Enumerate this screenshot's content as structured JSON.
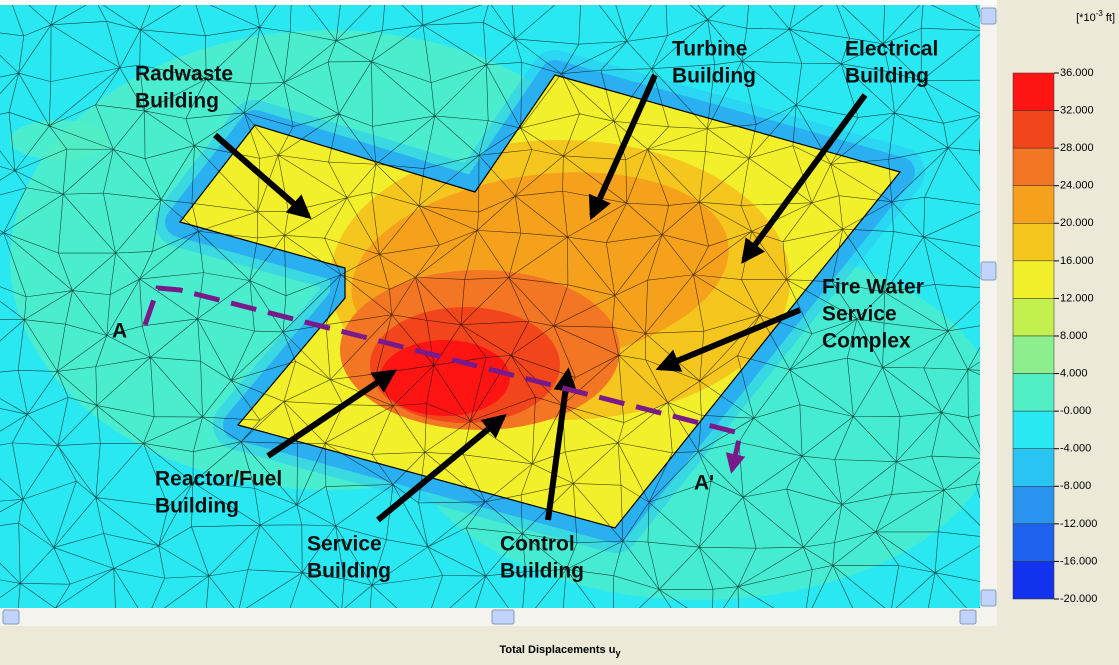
{
  "viewport": {
    "annotations": [
      {
        "lines": [
          "Radwaste",
          "Building"
        ]
      },
      {
        "lines": [
          "Turbine",
          "Building"
        ]
      },
      {
        "lines": [
          "Electrical",
          "Building"
        ]
      },
      {
        "lines": [
          "Fire Water",
          "Service",
          "Complex"
        ]
      },
      {
        "lines": [
          "Reactor/Fuel",
          "Building"
        ]
      },
      {
        "lines": [
          "Service",
          "Building"
        ]
      },
      {
        "lines": [
          "Control",
          "Building"
        ]
      }
    ],
    "section_labels": [
      "A",
      "A'"
    ]
  },
  "legend": {
    "unit_base": "[*10",
    "unit_exponent": "-3",
    "unit_suffix": "ft]",
    "labels": [
      "36.000",
      "32.000",
      "28.000",
      "24.000",
      "20.000",
      "16.000",
      "12.000",
      "8.000",
      "4.000",
      "-0.000",
      "-4.000",
      "-8.000",
      "-12.000",
      "-16.000",
      "-20.000"
    ],
    "colors": [
      "#ff1414",
      "#f2451c",
      "#f27624",
      "#f5a11c",
      "#f5c61e",
      "#f2f02a",
      "#c4f04e",
      "#8cee8c",
      "#52eec4",
      "#2ae8f2",
      "#2ac4f2",
      "#2894f0",
      "#1e62ee",
      "#1232ee"
    ]
  },
  "caption": {
    "text": "Total Displacements u",
    "subscript": "y"
  }
}
